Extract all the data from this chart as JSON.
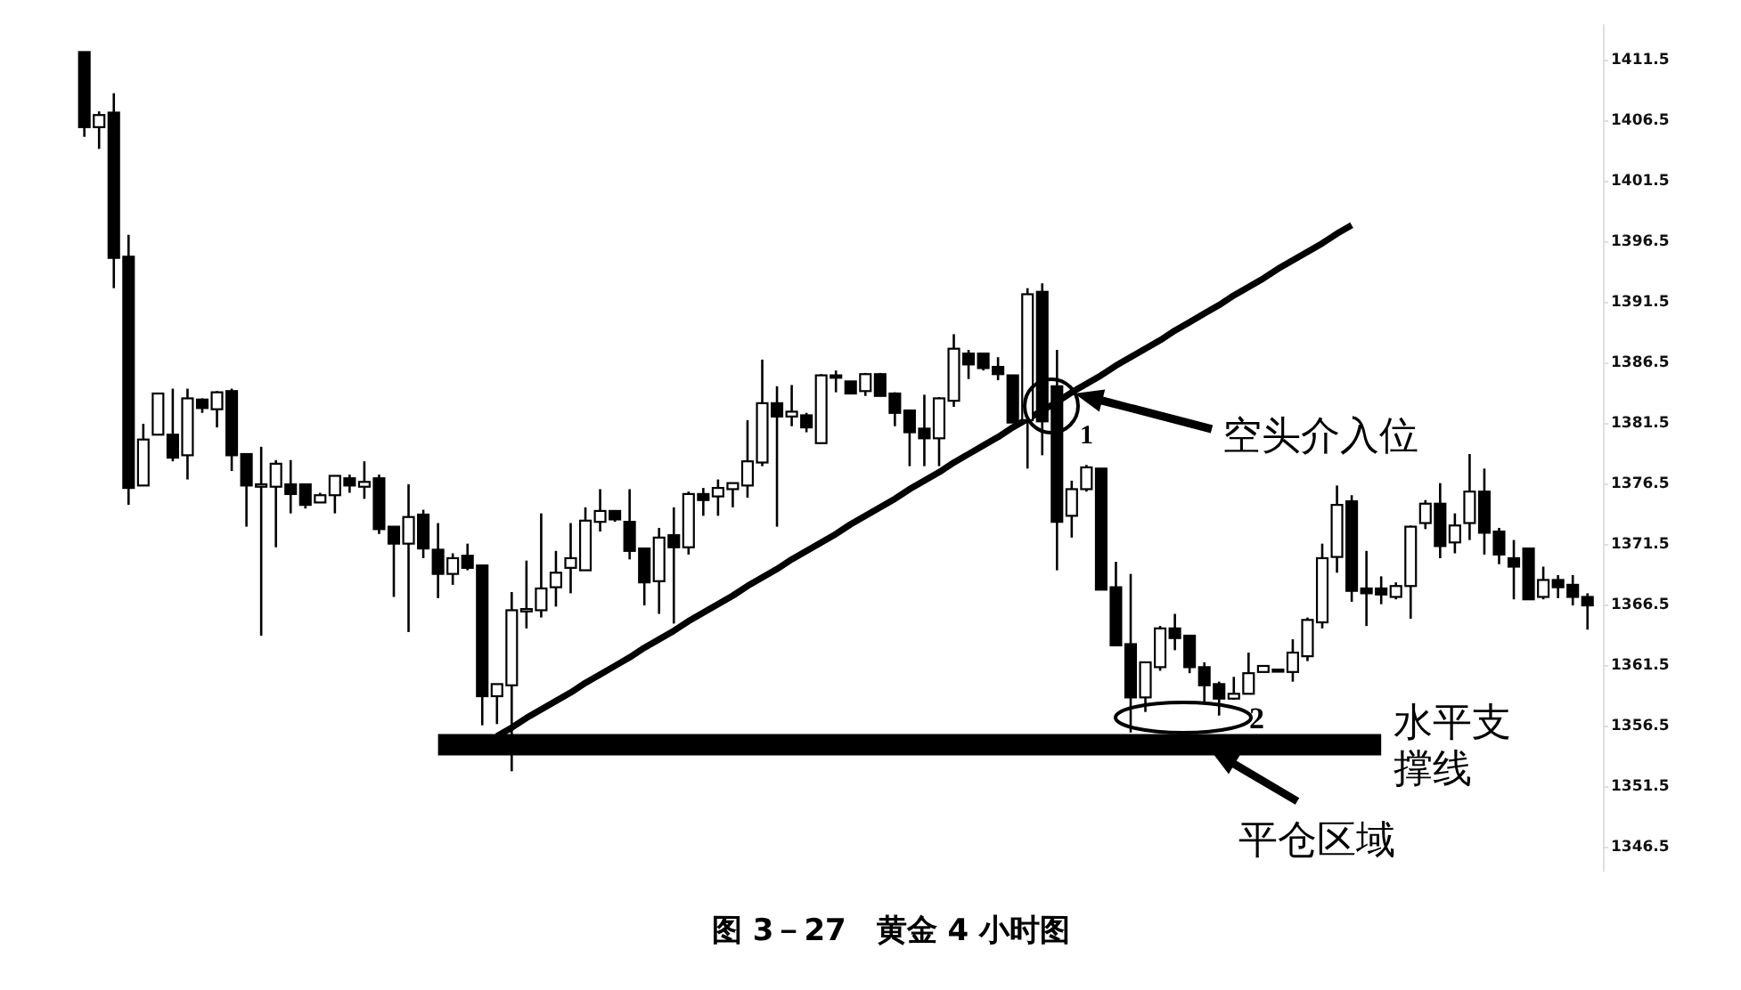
{
  "chart_data": {
    "type": "candlestick",
    "title": "图 3－27　黄金 4 小时图",
    "categories": [
      null,
      null,
      null,
      null,
      null,
      null,
      null,
      null,
      null,
      null,
      null,
      null,
      null,
      null,
      null,
      null,
      null,
      null,
      null,
      null,
      null,
      null,
      null,
      null,
      null,
      null,
      null,
      null,
      null,
      null,
      null,
      null,
      null,
      null,
      null,
      null,
      null,
      null,
      null,
      null,
      null,
      null,
      null,
      null,
      null,
      null,
      null,
      null,
      null,
      null,
      null,
      null,
      null,
      null,
      null,
      null,
      null,
      null,
      null,
      null,
      null,
      null,
      null,
      null,
      null,
      null,
      null,
      null,
      null,
      null,
      null,
      null,
      null,
      null,
      null,
      null,
      null,
      null,
      null,
      null,
      null,
      null,
      null,
      null,
      null,
      null,
      null,
      null,
      null,
      null,
      null,
      null,
      null,
      null,
      null,
      null,
      null,
      null,
      null,
      null,
      null,
      null,
      null
    ],
    "ohlc": [
      [
        1412.2,
        1412.2,
        1405.2,
        1406.0
      ],
      [
        1406.0,
        1407.3,
        1404.2,
        1407.0
      ],
      [
        1407.2,
        1408.8,
        1392.7,
        1395.2
      ],
      [
        1395.3,
        1397.1,
        1374.8,
        1376.2
      ],
      [
        1376.4,
        1381.5,
        1376.4,
        1380.2
      ],
      [
        1380.6,
        1384.0,
        1380.6,
        1384.0
      ],
      [
        1380.6,
        1384.4,
        1378.4,
        1378.7
      ],
      [
        1378.9,
        1384.4,
        1376.9,
        1383.6
      ],
      [
        1383.5,
        1383.6,
        1382.4,
        1382.8
      ],
      [
        1382.7,
        1384.2,
        1381.2,
        1384.1
      ],
      [
        1384.2,
        1384.4,
        1377.6,
        1378.9
      ],
      [
        1379.0,
        1379.0,
        1373.0,
        1376.4
      ],
      [
        1376.3,
        1379.6,
        1364.0,
        1376.5
      ],
      [
        1376.3,
        1378.5,
        1371.3,
        1378.2
      ],
      [
        1376.5,
        1378.5,
        1374.1,
        1375.7
      ],
      [
        1376.5,
        1376.5,
        1374.5,
        1374.8
      ],
      [
        1375.0,
        1375.8,
        1375.0,
        1375.6
      ],
      [
        1375.6,
        1377.2,
        1374.1,
        1377.2
      ],
      [
        1377.0,
        1377.3,
        1375.8,
        1376.4
      ],
      [
        1376.3,
        1378.4,
        1375.3,
        1376.7
      ],
      [
        1377.0,
        1377.3,
        1372.4,
        1372.8
      ],
      [
        1373.0,
        1373.0,
        1367.2,
        1371.6
      ],
      [
        1371.6,
        1376.5,
        1364.3,
        1373.8
      ],
      [
        1374.0,
        1374.4,
        1370.4,
        1371.2
      ],
      [
        1371.1,
        1373.3,
        1367.1,
        1369.1
      ],
      [
        1369.1,
        1370.8,
        1368.2,
        1370.4
      ],
      [
        1370.6,
        1371.6,
        1369.4,
        1369.6
      ],
      [
        1369.8,
        1369.8,
        1356.6,
        1359.0
      ],
      [
        1359.0,
        1360.0,
        1356.7,
        1360.0
      ],
      [
        1359.9,
        1367.6,
        1352.8,
        1366.1
      ],
      [
        1366.0,
        1370.2,
        1364.6,
        1366.2
      ],
      [
        1366.1,
        1374.1,
        1365.5,
        1367.9
      ],
      [
        1368.0,
        1371.0,
        1366.4,
        1369.2
      ],
      [
        1369.6,
        1373.3,
        1367.5,
        1370.4
      ],
      [
        1369.4,
        1374.6,
        1369.4,
        1373.5
      ],
      [
        1373.4,
        1376.1,
        1372.6,
        1374.3
      ],
      [
        1374.3,
        1374.3,
        1373.4,
        1373.6
      ],
      [
        1373.4,
        1376.1,
        1370.3,
        1371.0
      ],
      [
        1371.2,
        1371.2,
        1366.5,
        1368.4
      ],
      [
        1368.5,
        1372.9,
        1365.8,
        1372.1
      ],
      [
        1372.3,
        1374.6,
        1365.0,
        1371.3
      ],
      [
        1371.3,
        1375.9,
        1370.7,
        1375.7
      ],
      [
        1375.7,
        1376.2,
        1373.9,
        1375.2
      ],
      [
        1375.5,
        1376.9,
        1373.9,
        1376.2
      ],
      [
        1376.1,
        1376.6,
        1374.6,
        1376.6
      ],
      [
        1376.4,
        1381.8,
        1375.4,
        1378.4
      ],
      [
        1378.3,
        1386.8,
        1378.0,
        1383.2
      ],
      [
        1383.2,
        1384.6,
        1373.0,
        1382.1
      ],
      [
        1382.1,
        1384.7,
        1381.3,
        1382.5
      ],
      [
        1382.2,
        1382.4,
        1380.8,
        1381.2
      ],
      [
        1379.9,
        1385.6,
        1379.9,
        1385.5
      ],
      [
        1385.5,
        1385.9,
        1384.1,
        1385.3
      ],
      [
        1385.0,
        1385.0,
        1384.0,
        1384.0
      ],
      [
        1384.2,
        1385.7,
        1383.8,
        1385.6
      ],
      [
        1385.6,
        1385.7,
        1383.8,
        1383.8
      ],
      [
        1384.0,
        1384.1,
        1381.3,
        1382.4
      ],
      [
        1382.6,
        1382.6,
        1378.0,
        1380.8
      ],
      [
        1381.1,
        1383.9,
        1378.0,
        1380.3
      ],
      [
        1380.3,
        1383.7,
        1378.0,
        1383.6
      ],
      [
        1383.4,
        1388.9,
        1382.9,
        1387.7
      ],
      [
        1387.3,
        1387.6,
        1385.2,
        1386.4
      ],
      [
        1387.3,
        1387.3,
        1385.9,
        1386.1
      ],
      [
        1386.2,
        1387.0,
        1385.1,
        1385.6
      ],
      [
        1385.5,
        1385.5,
        1381.6,
        1381.6
      ],
      [
        1381.8,
        1392.7,
        1377.8,
        1392.2
      ],
      [
        1392.4,
        1393.1,
        1378.9,
        1381.7
      ],
      [
        1384.6,
        1387.6,
        1369.4,
        1373.4
      ],
      [
        1373.9,
        1376.8,
        1372.1,
        1376.1
      ],
      [
        1376.1,
        1378.1,
        1375.9,
        1377.9
      ],
      [
        1377.8,
        1377.8,
        1367.8,
        1367.8
      ],
      [
        1368.0,
        1370.1,
        1363.2,
        1363.2
      ],
      [
        1363.3,
        1369.1,
        1356.0,
        1358.9
      ],
      [
        1358.9,
        1361.8,
        1357.7,
        1361.8
      ],
      [
        1361.4,
        1364.8,
        1361.1,
        1364.6
      ],
      [
        1364.6,
        1365.8,
        1362.8,
        1363.8
      ],
      [
        1364.0,
        1364.0,
        1360.9,
        1361.4
      ],
      [
        1361.4,
        1361.8,
        1358.4,
        1359.9
      ],
      [
        1360.0,
        1360.2,
        1357.4,
        1358.8
      ],
      [
        1358.8,
        1360.6,
        1358.7,
        1359.2
      ],
      [
        1359.2,
        1362.6,
        1359.2,
        1360.9
      ],
      [
        1361.0,
        1361.5,
        1361.0,
        1361.5
      ],
      [
        1361.2,
        1361.2,
        1361.1,
        1361.1
      ],
      [
        1361.0,
        1363.7,
        1360.2,
        1362.6
      ],
      [
        1362.3,
        1365.5,
        1361.9,
        1365.3
      ],
      [
        1365.1,
        1371.6,
        1364.6,
        1370.4
      ],
      [
        1370.5,
        1376.4,
        1369.2,
        1374.8
      ],
      [
        1375.1,
        1375.6,
        1366.8,
        1367.7
      ],
      [
        1367.9,
        1371.0,
        1364.8,
        1367.5
      ],
      [
        1367.9,
        1368.9,
        1366.6,
        1367.4
      ],
      [
        1367.2,
        1368.4,
        1367.0,
        1368.1
      ],
      [
        1368.1,
        1373.1,
        1365.4,
        1373.0
      ],
      [
        1373.3,
        1375.2,
        1372.8,
        1374.9
      ],
      [
        1374.9,
        1376.6,
        1370.4,
        1371.4
      ],
      [
        1371.7,
        1374.1,
        1370.8,
        1373.1
      ],
      [
        1373.3,
        1379.0,
        1371.9,
        1375.9
      ],
      [
        1375.9,
        1377.8,
        1370.7,
        1372.5
      ],
      [
        1372.6,
        1372.9,
        1369.9,
        1370.7
      ],
      [
        1370.4,
        1371.9,
        1367.0,
        1369.7
      ],
      [
        1371.2,
        1371.2,
        1367.0,
        1367.0
      ],
      [
        1367.2,
        1369.7,
        1367.0,
        1368.6
      ],
      [
        1368.6,
        1369.0,
        1367.1,
        1368.0
      ],
      [
        1368.2,
        1369.0,
        1366.5,
        1367.2
      ],
      [
        1367.2,
        1367.5,
        1364.5,
        1366.5
      ]
    ],
    "series": [
      {
        "type": "line",
        "color": "#000000",
        "values": [
          null,
          null,
          null,
          null,
          null,
          null,
          null,
          null,
          null,
          null,
          null,
          null,
          null,
          null,
          null,
          null,
          null,
          null,
          null,
          null,
          null,
          null,
          null,
          null,
          null,
          null,
          null,
          null,
          1355.7,
          1356.4,
          1357.2,
          1357.9,
          1358.6,
          1359.3,
          1360.1,
          1360.8,
          1361.5,
          1362.2,
          1363.0,
          1363.7,
          1364.4,
          1365.2,
          1365.9,
          1366.6,
          1367.3,
          1368.1,
          1368.8,
          1369.5,
          1370.3,
          1371.0,
          1371.7,
          1372.4,
          1373.2,
          1373.9,
          1374.6,
          1375.3,
          1376.1,
          1376.8,
          1377.5,
          1378.3,
          1379.0,
          1379.7,
          1380.4,
          1381.2,
          1381.9,
          1382.6,
          1383.3,
          1384.1,
          1384.8,
          1385.5,
          1386.3,
          1387.0,
          1387.7,
          1388.4,
          1389.2,
          1389.9,
          1390.6,
          1391.3,
          1392.1,
          1392.8,
          1393.5,
          1394.3,
          1395.0,
          1395.7,
          1396.4,
          1397.2,
          1397.9,
          null,
          null,
          null,
          null,
          null,
          null,
          null,
          null,
          null,
          null,
          null,
          null,
          null,
          null,
          null,
          null
        ]
      },
      {
        "type": "line",
        "color": "#000000",
        "values": [
          null,
          null,
          null,
          null,
          null,
          null,
          null,
          null,
          null,
          null,
          null,
          null,
          null,
          null,
          null,
          null,
          null,
          null,
          null,
          null,
          null,
          null,
          null,
          null,
          1355.0,
          1355.0,
          1355.0,
          1355.0,
          1355.0,
          1355.0,
          1355.0,
          1355.0,
          1355.0,
          1355.0,
          1355.0,
          1355.0,
          1355.0,
          1355.0,
          1355.0,
          1355.0,
          1355.0,
          1355.0,
          1355.0,
          1355.0,
          1355.0,
          1355.0,
          1355.0,
          1355.0,
          1355.0,
          1355.0,
          1355.0,
          1355.0,
          1355.0,
          1355.0,
          1355.0,
          1355.0,
          1355.0,
          1355.0,
          1355.0,
          1355.0,
          1355.0,
          1355.0,
          1355.0,
          1355.0,
          1355.0,
          1355.0,
          1355.0,
          1355.0,
          1355.0,
          1355.0,
          1355.0,
          1355.0,
          1355.0,
          1355.0,
          1355.0,
          1355.0,
          1355.0,
          1355.0,
          1355.0,
          1355.0,
          1355.0,
          1355.0,
          1355.0,
          1355.0,
          1355.0,
          1355.0,
          1355.0,
          1355.0,
          1355.0,
          null,
          null,
          null,
          null,
          null,
          null,
          null,
          null,
          null,
          null,
          null,
          null,
          null,
          null
        ]
      }
    ],
    "ylim": [
      1344.5,
      1414.5
    ],
    "yticks": [
      1346.5,
      1351.5,
      1356.5,
      1361.5,
      1366.5,
      1371.5,
      1376.5,
      1381.5,
      1386.5,
      1391.5,
      1396.5,
      1401.5,
      1406.5,
      1411.5
    ],
    "tick_labels": "y",
    "annotations": [
      "空头介入位",
      "1",
      "2",
      "水平支撑线",
      "平仓区域"
    ]
  }
}
